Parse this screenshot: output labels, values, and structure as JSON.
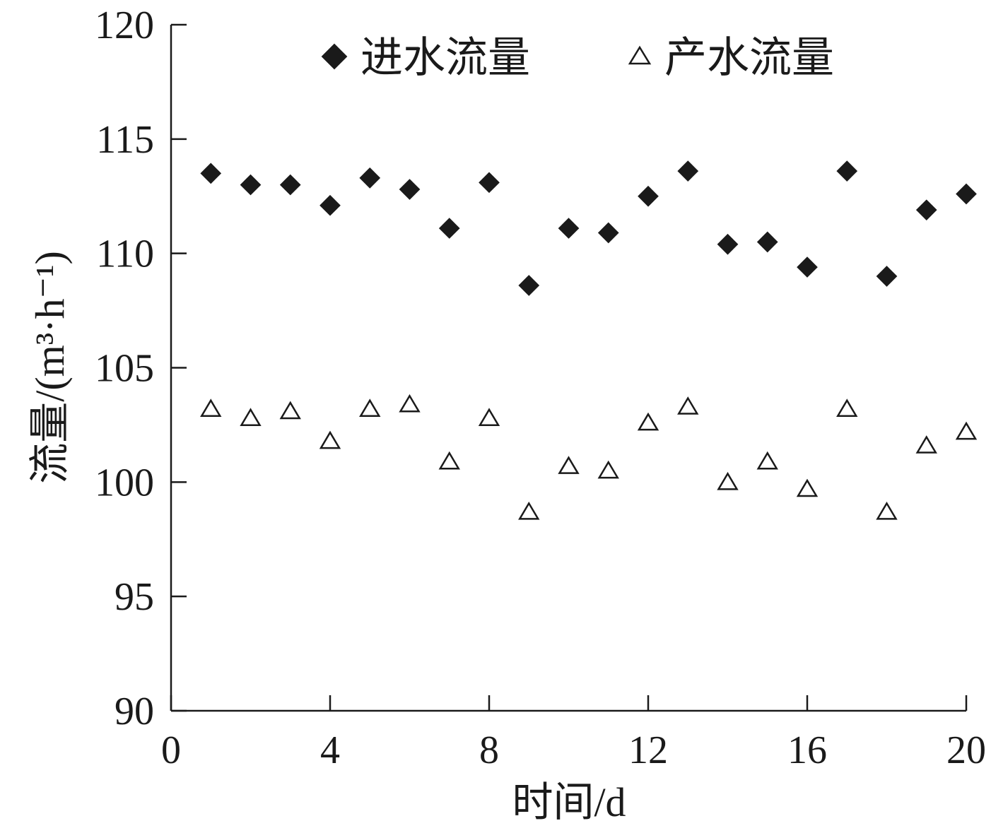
{
  "chart_data": {
    "type": "scatter",
    "title": "",
    "xlabel": "时间/d",
    "ylabel": "流量/(m³·h⁻¹)",
    "xlim": [
      0,
      20
    ],
    "ylim": [
      90,
      120
    ],
    "xticks": [
      0,
      4,
      8,
      12,
      16,
      20
    ],
    "yticks": [
      90,
      95,
      100,
      105,
      110,
      115,
      120
    ],
    "grid": false,
    "legend_position": "top",
    "x": [
      1,
      2,
      3,
      4,
      5,
      6,
      7,
      8,
      9,
      10,
      11,
      12,
      13,
      14,
      15,
      16,
      17,
      18,
      19,
      20
    ],
    "series": [
      {
        "name": "进水流量",
        "marker": "filled-diamond",
        "color": "#1a1a1a",
        "values": [
          113.5,
          113.0,
          113.0,
          112.1,
          113.3,
          112.8,
          111.1,
          113.1,
          108.6,
          111.1,
          110.9,
          112.5,
          113.6,
          110.4,
          110.5,
          109.4,
          113.6,
          109.0,
          111.9,
          112.6
        ]
      },
      {
        "name": "产水流量",
        "marker": "hollow-triangle",
        "color": "#1a1a1a",
        "values": [
          103.2,
          102.8,
          103.1,
          101.8,
          103.2,
          103.4,
          100.9,
          102.8,
          98.7,
          100.7,
          100.5,
          102.6,
          103.3,
          100.0,
          100.9,
          99.7,
          103.2,
          98.7,
          101.6,
          102.2
        ]
      }
    ]
  }
}
